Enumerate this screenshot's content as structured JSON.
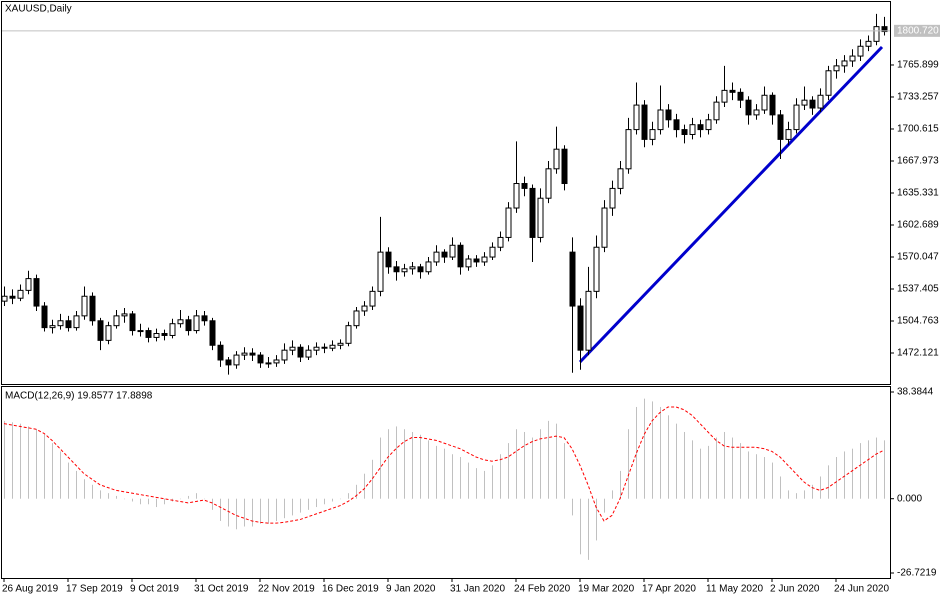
{
  "chart_data": [
    {
      "type": "candlestick",
      "title": "XAUUSD,Daily",
      "categories": [
        "26 Aug 2019",
        null,
        null,
        null,
        null,
        null,
        null,
        null,
        "17 Sep 2019",
        null,
        null,
        null,
        null,
        null,
        null,
        null,
        "9 Oct 2019",
        null,
        null,
        null,
        null,
        null,
        null,
        null,
        "31 Oct 2019",
        null,
        null,
        null,
        null,
        null,
        null,
        null,
        "22 Nov 2019",
        null,
        null,
        null,
        null,
        null,
        null,
        null,
        "16 Dec 2019",
        null,
        null,
        null,
        null,
        null,
        null,
        null,
        "9 Jan 2020",
        null,
        null,
        null,
        null,
        null,
        null,
        null,
        "31 Jan 2020",
        null,
        null,
        null,
        null,
        null,
        null,
        null,
        "24 Feb 2020",
        null,
        null,
        null,
        null,
        null,
        null,
        null,
        "19 Mar 2020",
        null,
        null,
        null,
        null,
        null,
        null,
        null,
        "17 Apr 2020",
        null,
        null,
        null,
        null,
        null,
        null,
        null,
        "11 May 2020",
        null,
        null,
        null,
        null,
        null,
        null,
        null,
        "2 Jun 2020",
        null,
        null,
        null,
        null,
        null,
        null,
        null,
        "24 Jun 2020",
        null,
        null,
        null,
        null,
        null,
        null
      ],
      "ohlc": [
        [
          1525,
          1540,
          1520,
          1530
        ],
        [
          1530,
          1537,
          1522,
          1528
        ],
        [
          1528,
          1542,
          1525,
          1536
        ],
        [
          1536,
          1556,
          1532,
          1548
        ],
        [
          1548,
          1552,
          1515,
          1520
        ],
        [
          1520,
          1524,
          1494,
          1498
        ],
        [
          1498,
          1506,
          1492,
          1500
        ],
        [
          1500,
          1512,
          1496,
          1505
        ],
        [
          1505,
          1510,
          1494,
          1498
        ],
        [
          1498,
          1515,
          1495,
          1510
        ],
        [
          1510,
          1540,
          1506,
          1530
        ],
        [
          1530,
          1534,
          1500,
          1505
        ],
        [
          1505,
          1508,
          1475,
          1485
        ],
        [
          1485,
          1504,
          1481,
          1500
        ],
        [
          1500,
          1516,
          1497,
          1510
        ],
        [
          1510,
          1518,
          1503,
          1512
        ],
        [
          1512,
          1515,
          1490,
          1495
        ],
        [
          1495,
          1502,
          1489,
          1495
        ],
        [
          1495,
          1498,
          1483,
          1488
        ],
        [
          1488,
          1497,
          1484,
          1492
        ],
        [
          1492,
          1496,
          1485,
          1490
        ],
        [
          1490,
          1507,
          1487,
          1502
        ],
        [
          1502,
          1516,
          1498,
          1506
        ],
        [
          1506,
          1510,
          1490,
          1495
        ],
        [
          1495,
          1516,
          1492,
          1510
        ],
        [
          1510,
          1515,
          1500,
          1505
        ],
        [
          1505,
          1508,
          1475,
          1480
        ],
        [
          1480,
          1484,
          1458,
          1465
        ],
        [
          1465,
          1468,
          1450,
          1460
        ],
        [
          1460,
          1474,
          1456,
          1470
        ],
        [
          1470,
          1478,
          1465,
          1472
        ],
        [
          1472,
          1477,
          1464,
          1470
        ],
        [
          1470,
          1473,
          1457,
          1462
        ],
        [
          1462,
          1468,
          1457,
          1462
        ],
        [
          1462,
          1470,
          1458,
          1465
        ],
        [
          1465,
          1482,
          1461,
          1475
        ],
        [
          1475,
          1485,
          1470,
          1478
        ],
        [
          1478,
          1481,
          1463,
          1468
        ],
        [
          1468,
          1480,
          1465,
          1475
        ],
        [
          1475,
          1483,
          1470,
          1478
        ],
        [
          1478,
          1482,
          1472,
          1477
        ],
        [
          1477,
          1485,
          1474,
          1480
        ],
        [
          1480,
          1486,
          1476,
          1482
        ],
        [
          1482,
          1504,
          1479,
          1500
        ],
        [
          1500,
          1519,
          1497,
          1515
        ],
        [
          1515,
          1525,
          1510,
          1520
        ],
        [
          1520,
          1540,
          1516,
          1535
        ],
        [
          1535,
          1611,
          1530,
          1575
        ],
        [
          1575,
          1580,
          1553,
          1560
        ],
        [
          1560,
          1566,
          1546,
          1555
        ],
        [
          1555,
          1563,
          1550,
          1558
        ],
        [
          1558,
          1565,
          1552,
          1560
        ],
        [
          1560,
          1563,
          1548,
          1555
        ],
        [
          1555,
          1570,
          1552,
          1565
        ],
        [
          1565,
          1582,
          1561,
          1575
        ],
        [
          1575,
          1578,
          1564,
          1570
        ],
        [
          1570,
          1590,
          1567,
          1582
        ],
        [
          1582,
          1585,
          1552,
          1560
        ],
        [
          1560,
          1572,
          1556,
          1568
        ],
        [
          1568,
          1572,
          1560,
          1565
        ],
        [
          1565,
          1575,
          1561,
          1570
        ],
        [
          1570,
          1585,
          1567,
          1580
        ],
        [
          1580,
          1596,
          1576,
          1590
        ],
        [
          1590,
          1626,
          1586,
          1620
        ],
        [
          1620,
          1688,
          1615,
          1645
        ],
        [
          1645,
          1652,
          1632,
          1640
        ],
        [
          1640,
          1644,
          1565,
          1590
        ],
        [
          1590,
          1640,
          1585,
          1630
        ],
        [
          1630,
          1668,
          1625,
          1660
        ],
        [
          1660,
          1703,
          1655,
          1680
        ],
        [
          1680,
          1684,
          1638,
          1645
        ],
        [
          1575,
          1590,
          1452,
          1520
        ],
        [
          1520,
          1528,
          1455,
          1475
        ],
        [
          1475,
          1560,
          1470,
          1535
        ],
        [
          1535,
          1592,
          1528,
          1580
        ],
        [
          1580,
          1628,
          1575,
          1620
        ],
        [
          1620,
          1648,
          1612,
          1640
        ],
        [
          1640,
          1668,
          1634,
          1660
        ],
        [
          1660,
          1712,
          1655,
          1700
        ],
        [
          1700,
          1748,
          1695,
          1725
        ],
        [
          1725,
          1730,
          1682,
          1690
        ],
        [
          1690,
          1708,
          1684,
          1700
        ],
        [
          1700,
          1745,
          1695,
          1720
        ],
        [
          1720,
          1726,
          1702,
          1710
        ],
        [
          1710,
          1716,
          1692,
          1700
        ],
        [
          1700,
          1705,
          1686,
          1695
        ],
        [
          1695,
          1712,
          1690,
          1705
        ],
        [
          1705,
          1710,
          1692,
          1700
        ],
        [
          1700,
          1716,
          1695,
          1710
        ],
        [
          1710,
          1734,
          1706,
          1728
        ],
        [
          1728,
          1765,
          1723,
          1740
        ],
        [
          1740,
          1748,
          1730,
          1738
        ],
        [
          1738,
          1742,
          1722,
          1730
        ],
        [
          1730,
          1734,
          1705,
          1715
        ],
        [
          1715,
          1726,
          1710,
          1720
        ],
        [
          1720,
          1744,
          1716,
          1735
        ],
        [
          1735,
          1738,
          1705,
          1715
        ],
        [
          1715,
          1720,
          1670,
          1690
        ],
        [
          1690,
          1708,
          1684,
          1700
        ],
        [
          1700,
          1732,
          1696,
          1725
        ],
        [
          1725,
          1744,
          1720,
          1730
        ],
        [
          1730,
          1734,
          1715,
          1722
        ],
        [
          1722,
          1742,
          1718,
          1735
        ],
        [
          1735,
          1765,
          1730,
          1760
        ],
        [
          1760,
          1772,
          1752,
          1765
        ],
        [
          1765,
          1776,
          1758,
          1770
        ],
        [
          1770,
          1782,
          1764,
          1775
        ],
        [
          1775,
          1792,
          1770,
          1785
        ],
        [
          1785,
          1796,
          1780,
          1790
        ],
        [
          1790,
          1818,
          1786,
          1805
        ],
        [
          1805,
          1815,
          1796,
          1800
        ]
      ],
      "up_color": "#ffffff",
      "down_color": "#000000",
      "ylim": [
        1440.5,
        1828.1
      ],
      "yticks": [
        1472.121,
        1504.763,
        1537.405,
        1570.047,
        1602.689,
        1635.331,
        1667.973,
        1700.615,
        1733.257,
        1765.899
      ],
      "last_price": {
        "value": 1800.72,
        "label": "1800.720"
      }
    },
    {
      "type": "macd",
      "title": "MACD(12,26,9) 19.8577 17.8898",
      "histogram": [
        28,
        27.5,
        27,
        26,
        25,
        23,
        20,
        17,
        13,
        10,
        7,
        5,
        3,
        2,
        1,
        0,
        -1,
        -2,
        -2,
        -3,
        -2,
        -1,
        0,
        1,
        2,
        0,
        -4,
        -8,
        -10,
        -11,
        -10,
        -10,
        -9,
        -9,
        -8,
        -7,
        -6,
        -5,
        -4,
        -3,
        -2,
        -1,
        0,
        2,
        5,
        9,
        14,
        22,
        25,
        26,
        25,
        24,
        23,
        21,
        19,
        18,
        16,
        15,
        13,
        11,
        10,
        12,
        16,
        20,
        25,
        24,
        22,
        25,
        28,
        27,
        20,
        -6,
        -20,
        -22,
        -15,
        -5,
        3,
        10,
        25,
        33,
        36,
        35,
        33,
        30,
        27,
        24,
        21,
        18,
        19,
        22,
        24,
        22,
        20,
        17,
        16,
        15,
        13,
        8,
        3,
        2,
        3,
        5,
        8,
        12,
        15,
        17,
        18,
        20,
        21,
        22,
        21
      ],
      "signal": [
        27,
        26.5,
        26,
        25.5,
        25,
        23.5,
        21,
        18,
        15,
        12,
        9,
        7,
        5,
        4,
        3,
        2.5,
        2,
        1.5,
        1,
        0.5,
        0,
        -0.5,
        -1,
        -1.5,
        -1,
        -0.5,
        -1.5,
        -3,
        -4.5,
        -6,
        -7,
        -8,
        -8.5,
        -8.8,
        -8.8,
        -8.5,
        -8,
        -7.5,
        -6.5,
        -5.5,
        -4.5,
        -3.5,
        -2.5,
        -1,
        1,
        3.5,
        7,
        11,
        15,
        18,
        20.5,
        22,
        22,
        21.5,
        21,
        20,
        19,
        18,
        16.5,
        15,
        14,
        13.5,
        14,
        15,
        17,
        19,
        20.5,
        21.5,
        22,
        22.5,
        22,
        18,
        12,
        5,
        -3,
        -8,
        -6,
        0,
        8,
        16,
        23,
        28,
        31,
        33,
        33,
        32,
        30,
        27,
        24,
        21,
        19,
        18.5,
        18.5,
        18.5,
        18.5,
        18,
        17,
        15,
        12,
        9,
        6,
        4,
        3,
        4,
        6,
        8,
        10,
        12,
        14,
        16,
        17.5
      ],
      "histogram_color": "#c0c0c0",
      "signal_color": "#ff0000",
      "ylim": [
        -26.7219,
        38.3844
      ],
      "yticks": [
        38.3844,
        {
          "value": 0,
          "label": "0.000"
        },
        -26.7219
      ]
    }
  ]
}
